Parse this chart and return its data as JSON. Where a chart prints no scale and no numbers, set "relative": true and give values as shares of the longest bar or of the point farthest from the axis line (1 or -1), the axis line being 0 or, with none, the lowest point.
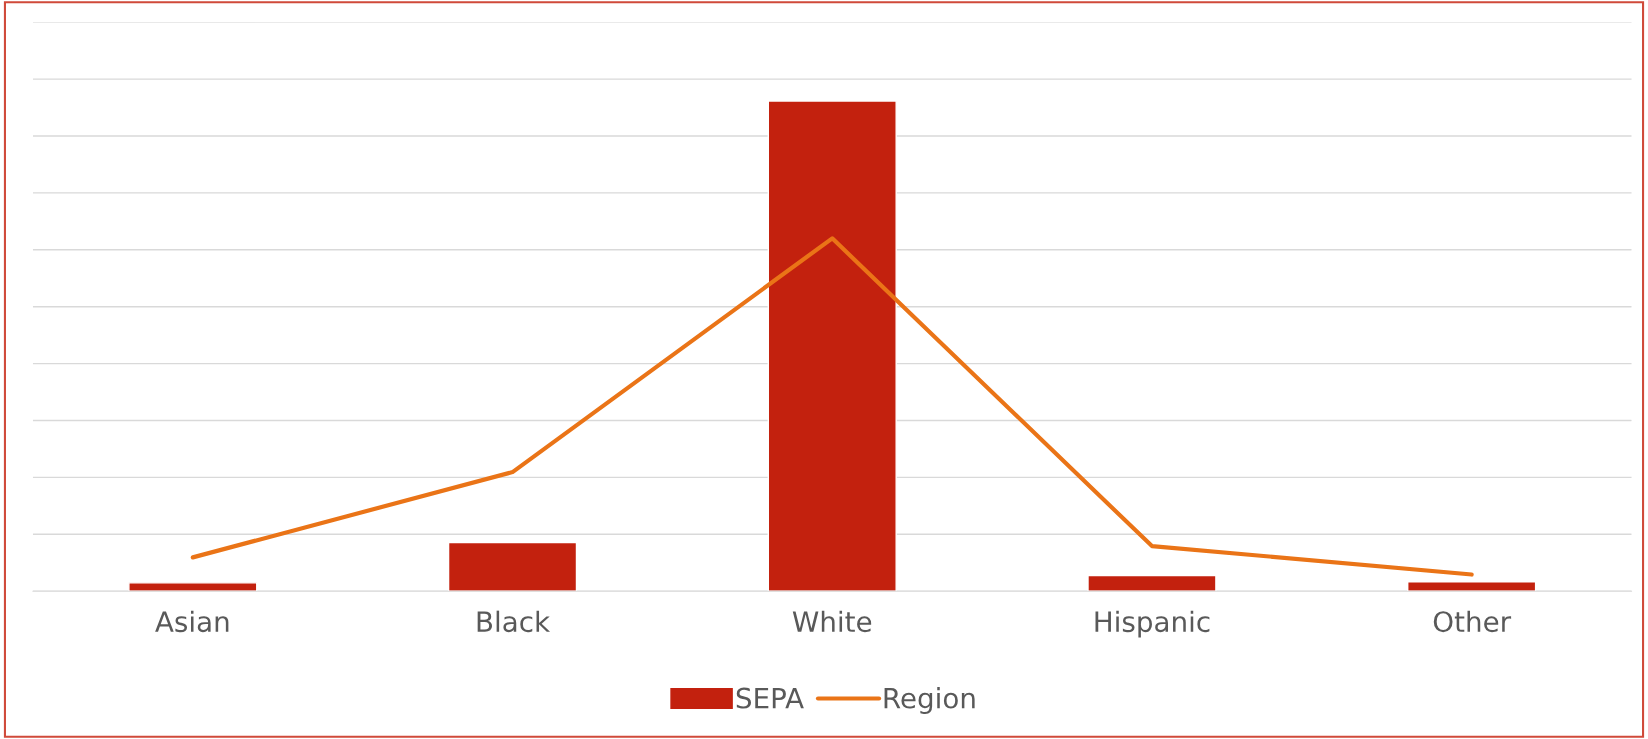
{
  "chart_data": {
    "type": "bar",
    "relative": true,
    "categories": [
      "Asian",
      "Black",
      "White",
      "Hispanic",
      "Other"
    ],
    "series": [
      {
        "name": "SEPA",
        "color": "#c3210e",
        "values": [
          0.017,
          0.099,
          1,
          0.032,
          0.019
        ]
      },
      {
        "name": "Region",
        "type": "line",
        "color": "#ea7417",
        "values": [
          0.069,
          0.243,
          0.72,
          0.092,
          0.034
        ]
      }
    ],
    "grid": "y",
    "legend": "bottom",
    "marker": "none",
    "line_style": "solid"
  }
}
